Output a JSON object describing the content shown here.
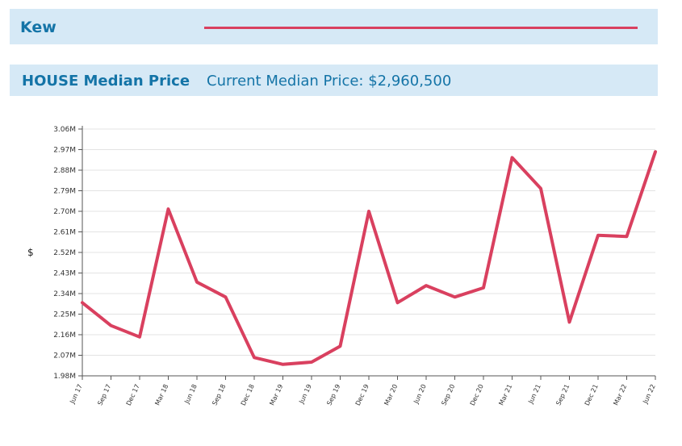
{
  "legend": {
    "label": "Kew",
    "line_color": "#d9405f"
  },
  "header": {
    "title": "HOUSE Median Price",
    "subtitle": "Current Median Price: $2,960,500"
  },
  "colors": {
    "band": "#d6e9f6",
    "text": "#1474a7",
    "series": "#d9405f"
  },
  "chart_data": {
    "type": "line",
    "title": "HOUSE Median Price",
    "xlabel": "",
    "ylabel": "$",
    "ylim": [
      1980000,
      3060000
    ],
    "y_ticks": [
      "1.98M",
      "2.07M",
      "2.16M",
      "2.25M",
      "2.34M",
      "2.43M",
      "2.52M",
      "2.61M",
      "2.70M",
      "2.79M",
      "2.88M",
      "2.97M",
      "3.06M"
    ],
    "grid": true,
    "categories": [
      "Jun 17",
      "Sep 17",
      "Dec 17",
      "Mar 18",
      "Jun 18",
      "Sep 18",
      "Dec 18",
      "Mar 19",
      "Jun 19",
      "Sep 19",
      "Dec 19",
      "Mar 20",
      "Jun 20",
      "Sep 20",
      "Dec 20",
      "Mar 21",
      "Jun 21",
      "Sep 21",
      "Dec 21",
      "Mar 22",
      "Jun 22"
    ],
    "series": [
      {
        "name": "Kew",
        "color": "#d9405f",
        "values": [
          2300000,
          2200000,
          2150000,
          2710000,
          2390000,
          2325000,
          2060000,
          2030000,
          2040000,
          2110000,
          2700000,
          2300000,
          2375000,
          2325000,
          2365000,
          2935000,
          2800000,
          2215000,
          2595000,
          2590000,
          2960500
        ]
      }
    ]
  }
}
